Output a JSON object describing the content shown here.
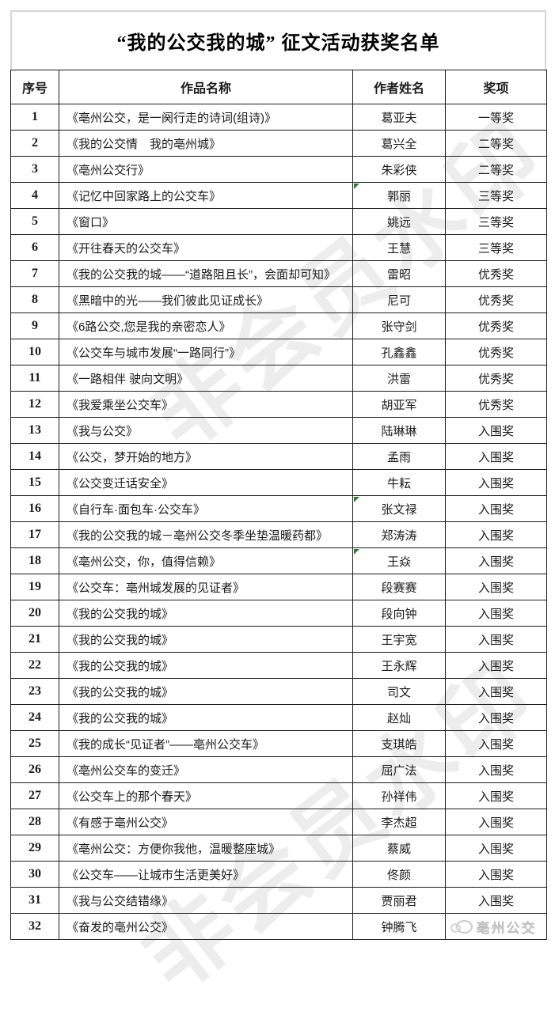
{
  "page_title": "“我的公交我的城” 征文活动获奖名单",
  "table": {
    "headers": {
      "no": "序号",
      "title": "作品名称",
      "author": "作者姓名",
      "award": "奖项"
    },
    "rows": [
      {
        "no": "1",
        "title": "《亳州公交，是一阕行走的诗词(组诗)》",
        "author": "葛亚夫",
        "award": "一等奖",
        "note_marker": false
      },
      {
        "no": "2",
        "title": "《我的公交情　我的亳州城》",
        "author": "葛兴全",
        "award": "二等奖",
        "note_marker": false
      },
      {
        "no": "3",
        "title": "《亳州公交行》",
        "author": "朱彩侠",
        "award": "二等奖",
        "note_marker": false
      },
      {
        "no": "4",
        "title": "《记忆中回家路上的公交车》",
        "author": "郭丽",
        "award": "三等奖",
        "note_marker": true
      },
      {
        "no": "5",
        "title": "《窗口》",
        "author": "姚远",
        "award": "三等奖",
        "note_marker": false
      },
      {
        "no": "6",
        "title": "《开往春天的公交车》",
        "author": "王慧",
        "award": "三等奖",
        "note_marker": false
      },
      {
        "no": "7",
        "title": "《我的公交我的城——“道路阻且长”，会面却可知》",
        "author": "雷昭",
        "award": "优秀奖",
        "note_marker": false
      },
      {
        "no": "8",
        "title": "《黑暗中的光——我们彼此见证成长》",
        "author": "尼可",
        "award": "优秀奖",
        "note_marker": false
      },
      {
        "no": "9",
        "title": "《6路公交,您是我的亲密恋人》",
        "author": "张守剑",
        "award": "优秀奖",
        "note_marker": false
      },
      {
        "no": "10",
        "title": "《公交车与城市发展“一路同行”》",
        "author": "孔鑫鑫",
        "award": "优秀奖",
        "note_marker": false
      },
      {
        "no": "11",
        "title": "《一路相伴 驶向文明》",
        "author": "洪雷",
        "award": "优秀奖",
        "note_marker": false
      },
      {
        "no": "12",
        "title": "《我爱乘坐公交车》",
        "author": "胡亚军",
        "award": "优秀奖",
        "note_marker": false
      },
      {
        "no": "13",
        "title": "《我与公交》",
        "author": "陆琳琳",
        "award": "入围奖",
        "note_marker": false
      },
      {
        "no": "14",
        "title": "《公交，梦开始的地方》",
        "author": "孟雨",
        "award": "入围奖",
        "note_marker": false
      },
      {
        "no": "15",
        "title": "《公交变迁话安全》",
        "author": "牛耘",
        "award": "入围奖",
        "note_marker": false
      },
      {
        "no": "16",
        "title": "《自行车·面包车·公交车》",
        "author": "张文禄",
        "award": "入围奖",
        "note_marker": true
      },
      {
        "no": "17",
        "title": "《我的公交我的城－亳州公交冬季坐垫温暖药都》",
        "author": "郑涛涛",
        "award": "入围奖",
        "note_marker": false
      },
      {
        "no": "18",
        "title": "《亳州公交，你，值得信赖》",
        "author": "王焱",
        "award": "入围奖",
        "note_marker": true
      },
      {
        "no": "19",
        "title": "《公交车：亳州城发展的见证者》",
        "author": "段赛赛",
        "award": "入围奖",
        "note_marker": false
      },
      {
        "no": "20",
        "title": "《我的公交我的城》",
        "author": "段向钟",
        "award": "入围奖",
        "note_marker": false
      },
      {
        "no": "21",
        "title": "《我的公交我的城》",
        "author": "王宇宽",
        "award": "入围奖",
        "note_marker": false
      },
      {
        "no": "22",
        "title": "《我的公交我的城》",
        "author": "王永辉",
        "award": "入围奖",
        "note_marker": false
      },
      {
        "no": "23",
        "title": "《我的公交我的城》",
        "author": "司文",
        "award": "入围奖",
        "note_marker": false
      },
      {
        "no": "24",
        "title": "《我的公交我的城》",
        "author": "赵灿",
        "award": "入围奖",
        "note_marker": false
      },
      {
        "no": "25",
        "title": "《我的成长“见证者”——亳州公交车》",
        "author": "支琪皓",
        "award": "入围奖",
        "note_marker": false
      },
      {
        "no": "26",
        "title": "《亳州公交车的变迁》",
        "author": "屈广法",
        "award": "入围奖",
        "note_marker": false
      },
      {
        "no": "27",
        "title": "《公交车上的那个春天》",
        "author": "孙祥伟",
        "award": "入围奖",
        "note_marker": false
      },
      {
        "no": "28",
        "title": "《有感于亳州公交》",
        "author": "李杰超",
        "award": "入围奖",
        "note_marker": false
      },
      {
        "no": "29",
        "title": "《亳州公交：方便你我他，温暖整座城》",
        "author": "蔡威",
        "award": "入围奖",
        "note_marker": false
      },
      {
        "no": "30",
        "title": "《公交车——让城市生活更美好》",
        "author": "佟颜",
        "award": "入围奖",
        "note_marker": false
      },
      {
        "no": "31",
        "title": "《我与公交结错缘》",
        "author": "贾丽君",
        "award": "入围奖",
        "note_marker": false
      },
      {
        "no": "32",
        "title": "《奋发的亳州公交》",
        "author": "钟腾飞",
        "award": "",
        "note_marker": false,
        "award_overlay": true
      }
    ]
  },
  "watermarks": {
    "diagonal_text": "非会员水印",
    "corner_logo_text": "亳州公交"
  },
  "colors": {
    "grid_border": "#1c1c1c",
    "title_border": "#d6d6d6",
    "note_marker_green": "#2e7d32",
    "watermark_gray": "#bfbfbf"
  }
}
